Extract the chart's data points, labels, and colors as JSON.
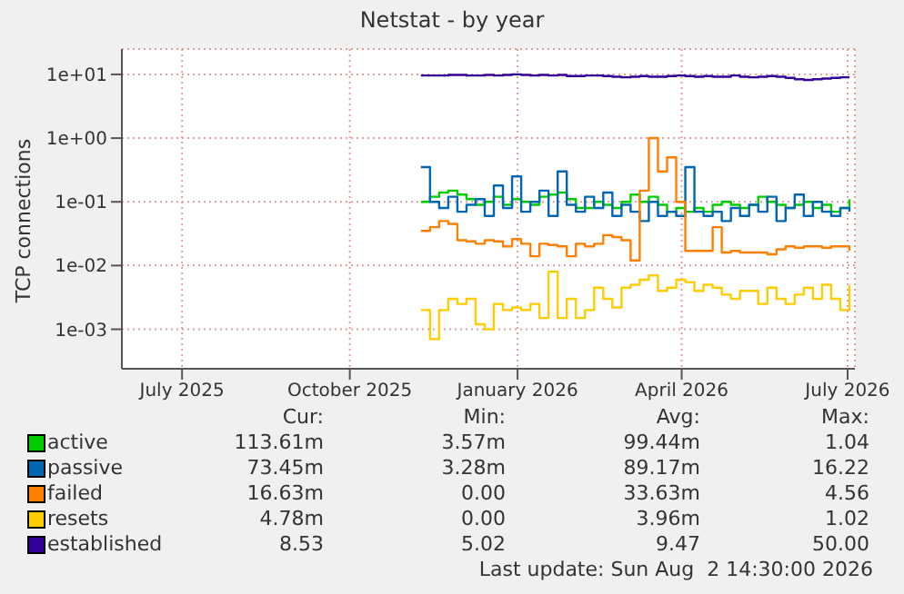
{
  "chart_data": {
    "type": "step",
    "title": "Netstat - by year",
    "ylabel": "TCP connections",
    "x": [
      "2025-11-09",
      "2025-11-14",
      "2025-11-19",
      "2025-11-24",
      "2025-11-29",
      "2025-12-04",
      "2025-12-09",
      "2025-12-14",
      "2025-12-19",
      "2025-12-24",
      "2025-12-29",
      "2026-01-03",
      "2026-01-08",
      "2026-01-13",
      "2026-01-18",
      "2026-01-23",
      "2026-01-28",
      "2026-02-02",
      "2026-02-07",
      "2026-02-12",
      "2026-02-17",
      "2026-02-22",
      "2026-02-27",
      "2026-03-04",
      "2026-03-09",
      "2026-03-14",
      "2026-03-19",
      "2026-03-24",
      "2026-03-29",
      "2026-04-03",
      "2026-04-08",
      "2026-04-13",
      "2026-04-18",
      "2026-04-23",
      "2026-04-28",
      "2026-05-03",
      "2026-05-08",
      "2026-05-13",
      "2026-05-18",
      "2026-05-23",
      "2026-05-28",
      "2026-06-02",
      "2026-06-07",
      "2026-06-12",
      "2026-06-17",
      "2026-06-22",
      "2026-06-27",
      "2026-07-02"
    ],
    "series": [
      {
        "name": "active",
        "color": "#00cc00",
        "values": [
          0.1,
          0.12,
          0.14,
          0.15,
          0.13,
          0.11,
          0.09,
          0.1,
          0.12,
          0.09,
          0.11,
          0.1,
          0.09,
          0.12,
          0.13,
          0.14,
          0.11,
          0.08,
          0.08,
          0.1,
          0.09,
          0.08,
          0.1,
          0.13,
          0.1,
          0.12,
          0.09,
          0.07,
          0.08,
          0.07,
          0.08,
          0.07,
          0.09,
          0.1,
          0.09,
          0.08,
          0.09,
          0.12,
          0.1,
          0.09,
          0.08,
          0.09,
          0.1,
          0.08,
          0.09,
          0.07,
          0.08,
          0.11
        ]
      },
      {
        "name": "passive",
        "color": "#0066b3",
        "values": [
          0.35,
          0.1,
          0.08,
          0.12,
          0.07,
          0.09,
          0.11,
          0.06,
          0.18,
          0.08,
          0.25,
          0.07,
          0.1,
          0.15,
          0.06,
          0.3,
          0.09,
          0.07,
          0.12,
          0.08,
          0.14,
          0.06,
          0.09,
          0.07,
          0.05,
          0.1,
          0.06,
          0.07,
          0.06,
          0.35,
          0.07,
          0.06,
          0.07,
          0.05,
          0.08,
          0.06,
          0.09,
          0.07,
          0.12,
          0.05,
          0.08,
          0.13,
          0.06,
          0.1,
          0.07,
          0.06,
          0.08,
          0.07
        ]
      },
      {
        "name": "failed",
        "color": "#ff8000",
        "values": [
          0.035,
          0.04,
          0.05,
          0.045,
          0.025,
          0.024,
          0.022,
          0.025,
          0.024,
          0.02,
          0.026,
          0.022,
          0.014,
          0.022,
          0.021,
          0.02,
          0.014,
          0.022,
          0.02,
          0.022,
          0.03,
          0.028,
          0.025,
          0.012,
          0.15,
          1.0,
          0.3,
          0.5,
          0.1,
          0.017,
          0.017,
          0.017,
          0.04,
          0.016,
          0.017,
          0.016,
          0.016,
          0.016,
          0.015,
          0.018,
          0.02,
          0.019,
          0.02,
          0.02,
          0.019,
          0.02,
          0.02,
          0.017
        ]
      },
      {
        "name": "resets",
        "color": "#ffcc00",
        "values": [
          0.002,
          0.0007,
          0.002,
          0.003,
          0.0025,
          0.003,
          0.0012,
          0.001,
          0.0025,
          0.002,
          0.0022,
          0.002,
          0.0025,
          0.0015,
          0.008,
          0.0015,
          0.003,
          0.0015,
          0.002,
          0.0045,
          0.003,
          0.0022,
          0.0045,
          0.005,
          0.006,
          0.007,
          0.004,
          0.0045,
          0.006,
          0.0055,
          0.004,
          0.005,
          0.0045,
          0.0035,
          0.003,
          0.004,
          0.004,
          0.0025,
          0.0045,
          0.003,
          0.0025,
          0.0035,
          0.0045,
          0.003,
          0.005,
          0.003,
          0.002,
          0.005
        ]
      },
      {
        "name": "established",
        "color": "#330099",
        "values": [
          9.6,
          9.6,
          9.6,
          9.8,
          9.8,
          9.6,
          9.6,
          9.8,
          9.6,
          9.8,
          10,
          9.8,
          9.6,
          9.8,
          9.6,
          9.8,
          9.4,
          9.4,
          9.6,
          9.6,
          9.4,
          9.2,
          9.0,
          9.2,
          9.4,
          9.2,
          9.2,
          9.4,
          9.6,
          9.4,
          9.2,
          9.4,
          9.2,
          9.2,
          9.6,
          9.2,
          9.0,
          9.2,
          9.4,
          9.2,
          8.8,
          8.4,
          8.2,
          8.4,
          8.6,
          8.8,
          9.0,
          9.0
        ]
      }
    ],
    "log": "y",
    "ylim": [
      0.00024,
      25
    ],
    "yticks": [
      {
        "value": 0.001,
        "label": "1e-03"
      },
      {
        "value": 0.01,
        "label": "1e-02"
      },
      {
        "value": 0.1,
        "label": "1e-01"
      },
      {
        "value": 1,
        "label": "1e+00"
      },
      {
        "value": 10,
        "label": "1e+01"
      }
    ],
    "xlim": [
      "2025-05-29",
      "2026-07-05"
    ],
    "xticks": [
      {
        "value": "2025-07-01",
        "label": "July 2025"
      },
      {
        "value": "2025-10-01",
        "label": "October 2025"
      },
      {
        "value": "2026-01-01",
        "label": "January 2026"
      },
      {
        "value": "2026-04-01",
        "label": "April 2026"
      },
      {
        "value": "2026-07-01",
        "label": "July 2026"
      }
    ],
    "grid": true,
    "legend": "bottom left",
    "marker": "none",
    "line_style": "solid",
    "annotations": [
      "Cur:",
      "Min:",
      "Avg:",
      "Max:",
      "113.61m",
      "3.57m",
      "99.44m",
      "1.04",
      "73.45m",
      "3.28m",
      "89.17m",
      "16.22",
      "16.63m",
      "0.00",
      "33.63m",
      "4.56",
      "4.78m",
      "0.00",
      "3.96m",
      "1.02",
      "8.53",
      "5.02",
      "9.47",
      "50.00",
      "Last update: Sun Aug  2 14:30:00 2026"
    ]
  }
}
